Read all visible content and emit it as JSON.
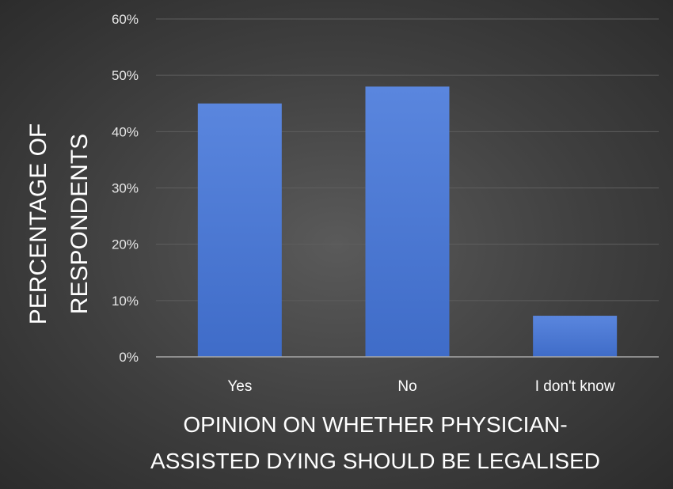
{
  "chart_data": {
    "type": "bar",
    "categories": [
      "Yes",
      "No",
      "I don't know"
    ],
    "values": [
      45,
      48,
      7.3
    ],
    "ylim": [
      0,
      60
    ],
    "yticks": [
      0,
      10,
      20,
      30,
      40,
      50,
      60
    ],
    "ytick_labels": [
      "0%",
      "10%",
      "20%",
      "30%",
      "40%",
      "50%",
      "60%"
    ],
    "ylabel_lines": [
      "PERCENTAGE OF",
      "RESPONDENTS"
    ],
    "xlabel_lines": [
      "OPINION ON WHETHER PHYSICIAN-",
      "ASSISTED DYING SHOULD BE LEGALISED"
    ],
    "grid": true,
    "bar_color": "#4a76d0",
    "bar_color_top": "#5a86de",
    "background": "#3f3f3f"
  }
}
